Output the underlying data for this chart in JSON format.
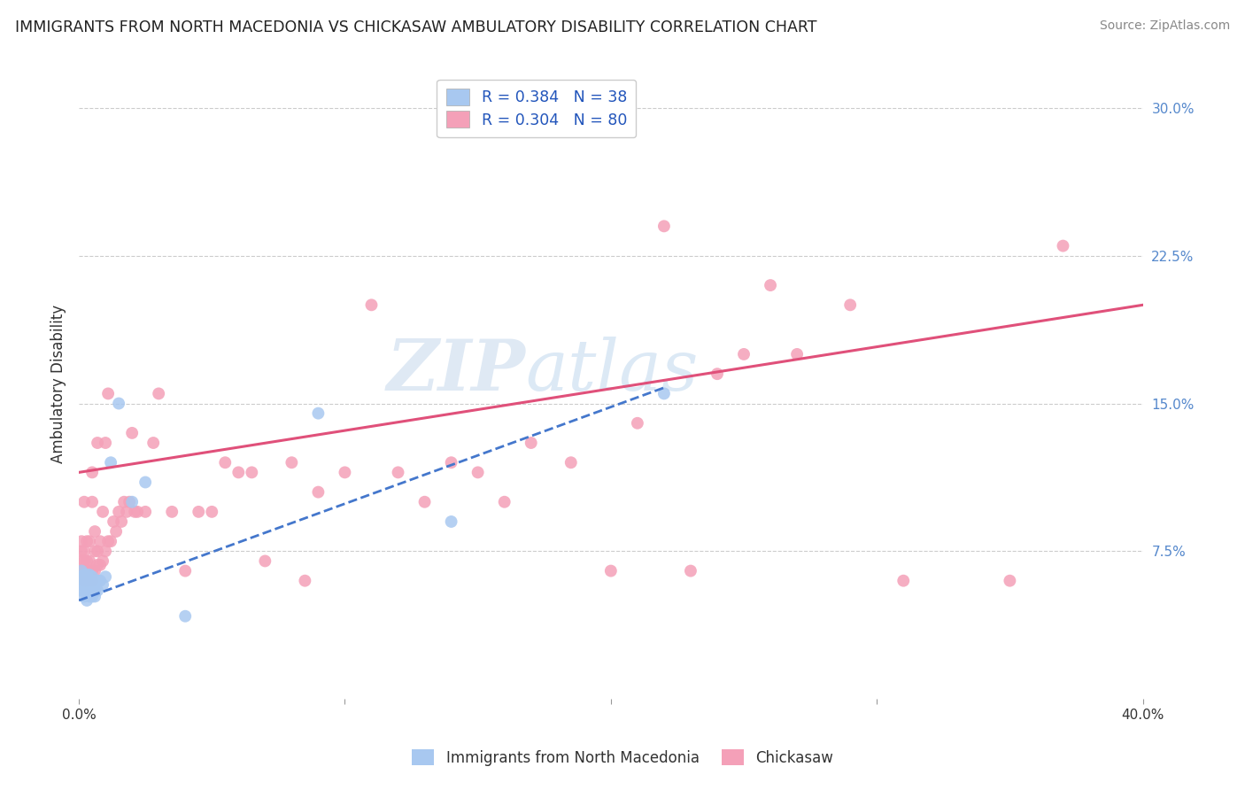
{
  "title": "IMMIGRANTS FROM NORTH MACEDONIA VS CHICKASAW AMBULATORY DISABILITY CORRELATION CHART",
  "source": "Source: ZipAtlas.com",
  "ylabel": "Ambulatory Disability",
  "xlim": [
    0.0,
    0.4
  ],
  "ylim": [
    0.0,
    0.32
  ],
  "y_ticks_right": [
    0.075,
    0.15,
    0.225,
    0.3
  ],
  "y_tick_labels_right": [
    "7.5%",
    "15.0%",
    "22.5%",
    "30.0%"
  ],
  "blue_R": 0.384,
  "blue_N": 38,
  "pink_R": 0.304,
  "pink_N": 80,
  "blue_color": "#a8c8f0",
  "pink_color": "#f4a0b8",
  "blue_line_color": "#4477cc",
  "pink_line_color": "#e0507a",
  "watermark": "ZIPatlas",
  "legend_label_blue": "Immigrants from North Macedonia",
  "legend_label_pink": "Chickasaw",
  "blue_scatter_x": [
    0.001,
    0.001,
    0.001,
    0.001,
    0.002,
    0.002,
    0.002,
    0.002,
    0.002,
    0.003,
    0.003,
    0.003,
    0.003,
    0.003,
    0.004,
    0.004,
    0.004,
    0.004,
    0.005,
    0.005,
    0.005,
    0.005,
    0.006,
    0.006,
    0.006,
    0.007,
    0.007,
    0.008,
    0.009,
    0.01,
    0.012,
    0.015,
    0.02,
    0.025,
    0.04,
    0.09,
    0.14,
    0.22
  ],
  "blue_scatter_y": [
    0.055,
    0.058,
    0.062,
    0.065,
    0.052,
    0.055,
    0.058,
    0.06,
    0.063,
    0.05,
    0.053,
    0.057,
    0.06,
    0.063,
    0.052,
    0.055,
    0.06,
    0.063,
    0.052,
    0.055,
    0.058,
    0.062,
    0.052,
    0.055,
    0.06,
    0.055,
    0.06,
    0.06,
    0.058,
    0.062,
    0.12,
    0.15,
    0.1,
    0.11,
    0.042,
    0.145,
    0.09,
    0.155
  ],
  "pink_scatter_x": [
    0.001,
    0.001,
    0.001,
    0.001,
    0.002,
    0.002,
    0.002,
    0.002,
    0.002,
    0.003,
    0.003,
    0.003,
    0.003,
    0.004,
    0.004,
    0.004,
    0.005,
    0.005,
    0.005,
    0.005,
    0.006,
    0.006,
    0.006,
    0.007,
    0.007,
    0.007,
    0.008,
    0.008,
    0.009,
    0.009,
    0.01,
    0.01,
    0.011,
    0.011,
    0.012,
    0.013,
    0.014,
    0.015,
    0.016,
    0.017,
    0.018,
    0.019,
    0.02,
    0.021,
    0.022,
    0.025,
    0.028,
    0.03,
    0.035,
    0.04,
    0.045,
    0.05,
    0.055,
    0.06,
    0.065,
    0.07,
    0.08,
    0.085,
    0.09,
    0.1,
    0.11,
    0.12,
    0.13,
    0.14,
    0.15,
    0.16,
    0.17,
    0.185,
    0.2,
    0.21,
    0.22,
    0.23,
    0.24,
    0.25,
    0.26,
    0.27,
    0.29,
    0.31,
    0.35,
    0.37
  ],
  "pink_scatter_y": [
    0.065,
    0.07,
    0.075,
    0.08,
    0.06,
    0.065,
    0.07,
    0.075,
    0.1,
    0.06,
    0.065,
    0.07,
    0.08,
    0.062,
    0.07,
    0.08,
    0.06,
    0.065,
    0.1,
    0.115,
    0.065,
    0.075,
    0.085,
    0.068,
    0.075,
    0.13,
    0.068,
    0.08,
    0.07,
    0.095,
    0.075,
    0.13,
    0.08,
    0.155,
    0.08,
    0.09,
    0.085,
    0.095,
    0.09,
    0.1,
    0.095,
    0.1,
    0.135,
    0.095,
    0.095,
    0.095,
    0.13,
    0.155,
    0.095,
    0.065,
    0.095,
    0.095,
    0.12,
    0.115,
    0.115,
    0.07,
    0.12,
    0.06,
    0.105,
    0.115,
    0.2,
    0.115,
    0.1,
    0.12,
    0.115,
    0.1,
    0.13,
    0.12,
    0.065,
    0.14,
    0.24,
    0.065,
    0.165,
    0.175,
    0.21,
    0.175,
    0.2,
    0.06,
    0.06,
    0.23
  ],
  "pink_line_x0": 0.0,
  "pink_line_y0": 0.115,
  "pink_line_x1": 0.4,
  "pink_line_y1": 0.2,
  "blue_line_x0": 0.0,
  "blue_line_y0": 0.05,
  "blue_line_x1": 0.22,
  "blue_line_y1": 0.158
}
